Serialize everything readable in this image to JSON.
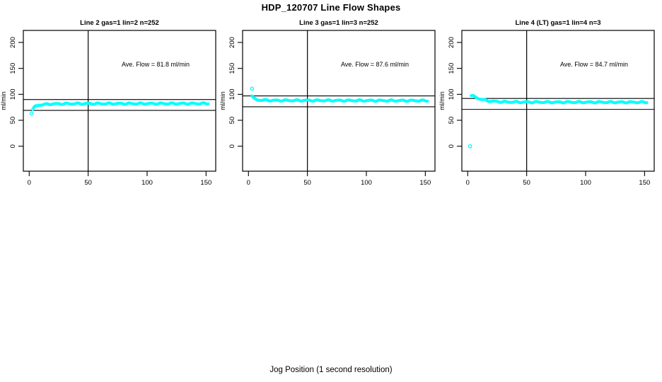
{
  "title": "HDP_120707  Line Flow Shapes",
  "xlabel": "Jog Position (1 second resolution)",
  "colors": {
    "point": "#00ffff",
    "axis": "#000000",
    "background": "#ffffff"
  },
  "chart_data": {
    "type": "scatter",
    "shared": {
      "ylabel": "ml/min",
      "x_ticks": [
        0,
        50,
        100,
        150
      ],
      "y_ticks": [
        0,
        50,
        100,
        150,
        200
      ],
      "xlim": [
        -5,
        158
      ],
      "ylim": [
        -13,
        222
      ],
      "vline_x": 50,
      "grid": false,
      "marker": "open-circle",
      "x_resolution_seconds": 1
    },
    "panels": [
      {
        "title": "Line 2 gas=1 lin=2 n=252",
        "annotation": "Ave. Flow =  81.8  ml/min",
        "ave_flow_ml_min": 81.8,
        "n": 252,
        "ref_lines": [
          90,
          69
        ],
        "outliers": [
          [
            2,
            63
          ]
        ],
        "curve_anchors": [
          [
            3,
            71
          ],
          [
            4,
            74
          ],
          [
            5,
            76
          ],
          [
            6,
            77.5
          ],
          [
            8,
            79
          ],
          [
            12,
            80.5
          ],
          [
            20,
            81.5
          ],
          [
            40,
            82
          ],
          [
            152,
            82.3
          ]
        ]
      },
      {
        "title": "Line 3 gas=1 lin=3 n=252",
        "annotation": "Ave. Flow =  87.6  ml/min",
        "ave_flow_ml_min": 87.6,
        "n": 252,
        "ref_lines": [
          97,
          76
        ],
        "outliers": [
          [
            3,
            111
          ]
        ],
        "curve_anchors": [
          [
            3,
            97
          ],
          [
            4,
            93
          ],
          [
            5,
            91
          ],
          [
            7,
            89.5
          ],
          [
            10,
            89
          ],
          [
            20,
            88.3
          ],
          [
            152,
            87.8
          ]
        ]
      },
      {
        "title": "Line 4 (LT) gas=1 lin=4 n=3",
        "annotation": "Ave. Flow =  84.7  ml/min",
        "ave_flow_ml_min": 84.7,
        "n": 3,
        "ref_lines": [
          92,
          71
        ],
        "outliers": [
          [
            2,
            0
          ]
        ],
        "curve_anchors": [
          [
            3,
            97.5
          ],
          [
            5,
            96
          ],
          [
            7,
            94
          ],
          [
            10,
            91.5
          ],
          [
            14,
            89
          ],
          [
            18,
            87.3
          ],
          [
            24,
            86
          ],
          [
            32,
            85.3
          ],
          [
            45,
            85
          ],
          [
            152,
            84.8
          ]
        ]
      }
    ]
  }
}
